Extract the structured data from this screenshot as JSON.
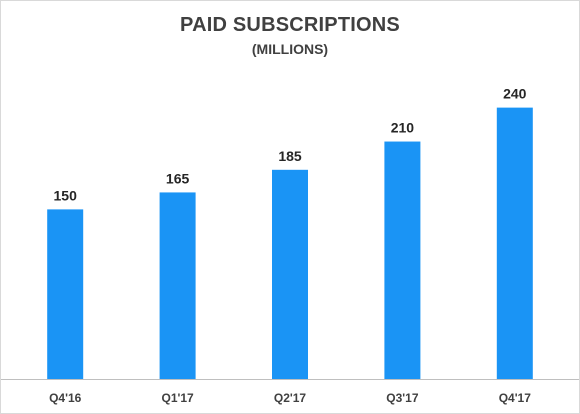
{
  "chart_data": {
    "type": "bar",
    "title": "PAID SUBSCRIPTIONS",
    "subtitle": "(MILLIONS)",
    "xlabel": "",
    "ylabel": "",
    "categories": [
      "Q4'16",
      "Q1'17",
      "Q2'17",
      "Q3'17",
      "Q4'17"
    ],
    "values": [
      150,
      165,
      185,
      210,
      240
    ],
    "data_labels": [
      "150",
      "165",
      "185",
      "210",
      "240"
    ],
    "ylim": [
      0,
      260
    ],
    "grid": false,
    "legend": "none",
    "colors": {
      "bar": "#1a94f5",
      "axis": "#bfbfbf",
      "text": "#404040"
    }
  }
}
